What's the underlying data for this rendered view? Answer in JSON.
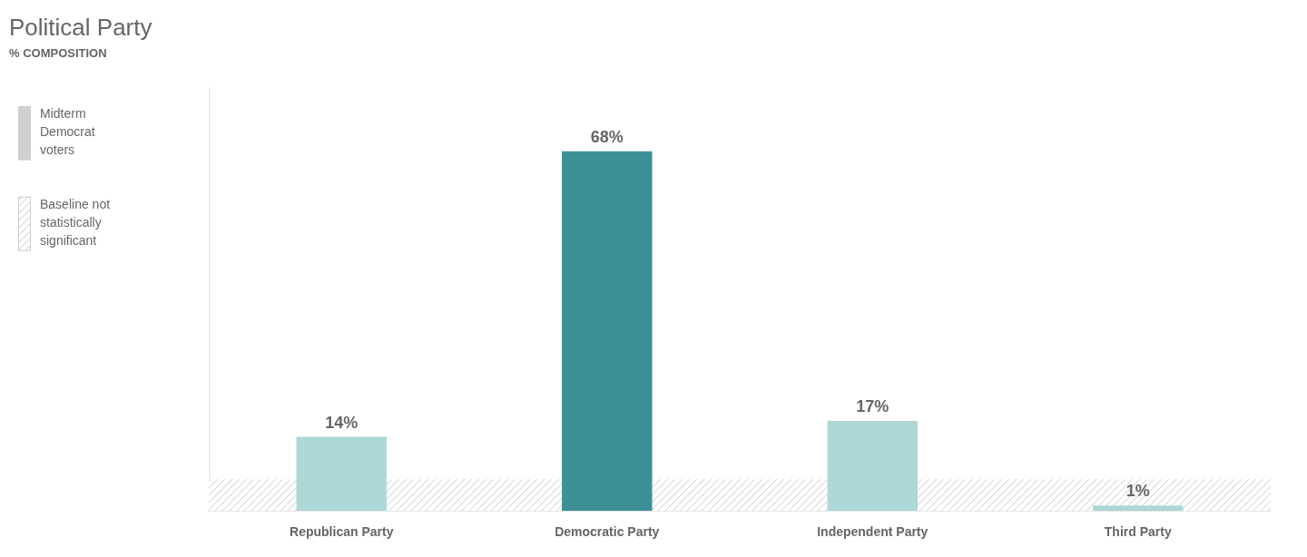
{
  "chart_data": {
    "type": "bar",
    "title": "Political Party",
    "subtitle": "% COMPOSITION",
    "categories": [
      "Republican Party",
      "Democratic Party",
      "Independent Party",
      "Third Party"
    ],
    "values": [
      14,
      68,
      17,
      1
    ],
    "value_labels": [
      "14%",
      "68%",
      "17%",
      "1%"
    ],
    "colors": [
      "#aed8d8",
      "#3d9096",
      "#aed8d8",
      "#aed8d8"
    ],
    "ylim": [
      0,
      80
    ],
    "grid": false,
    "data_labels": true,
    "tick_labels": "x",
    "baseline": 6,
    "annotations": [
      {
        "text": "Midterm\nDemocrat\nvoters",
        "color": "#d0d0d0"
      },
      {
        "text": "Baseline not\nstatistically\nsignificant",
        "color": "#cccccc"
      }
    ]
  }
}
